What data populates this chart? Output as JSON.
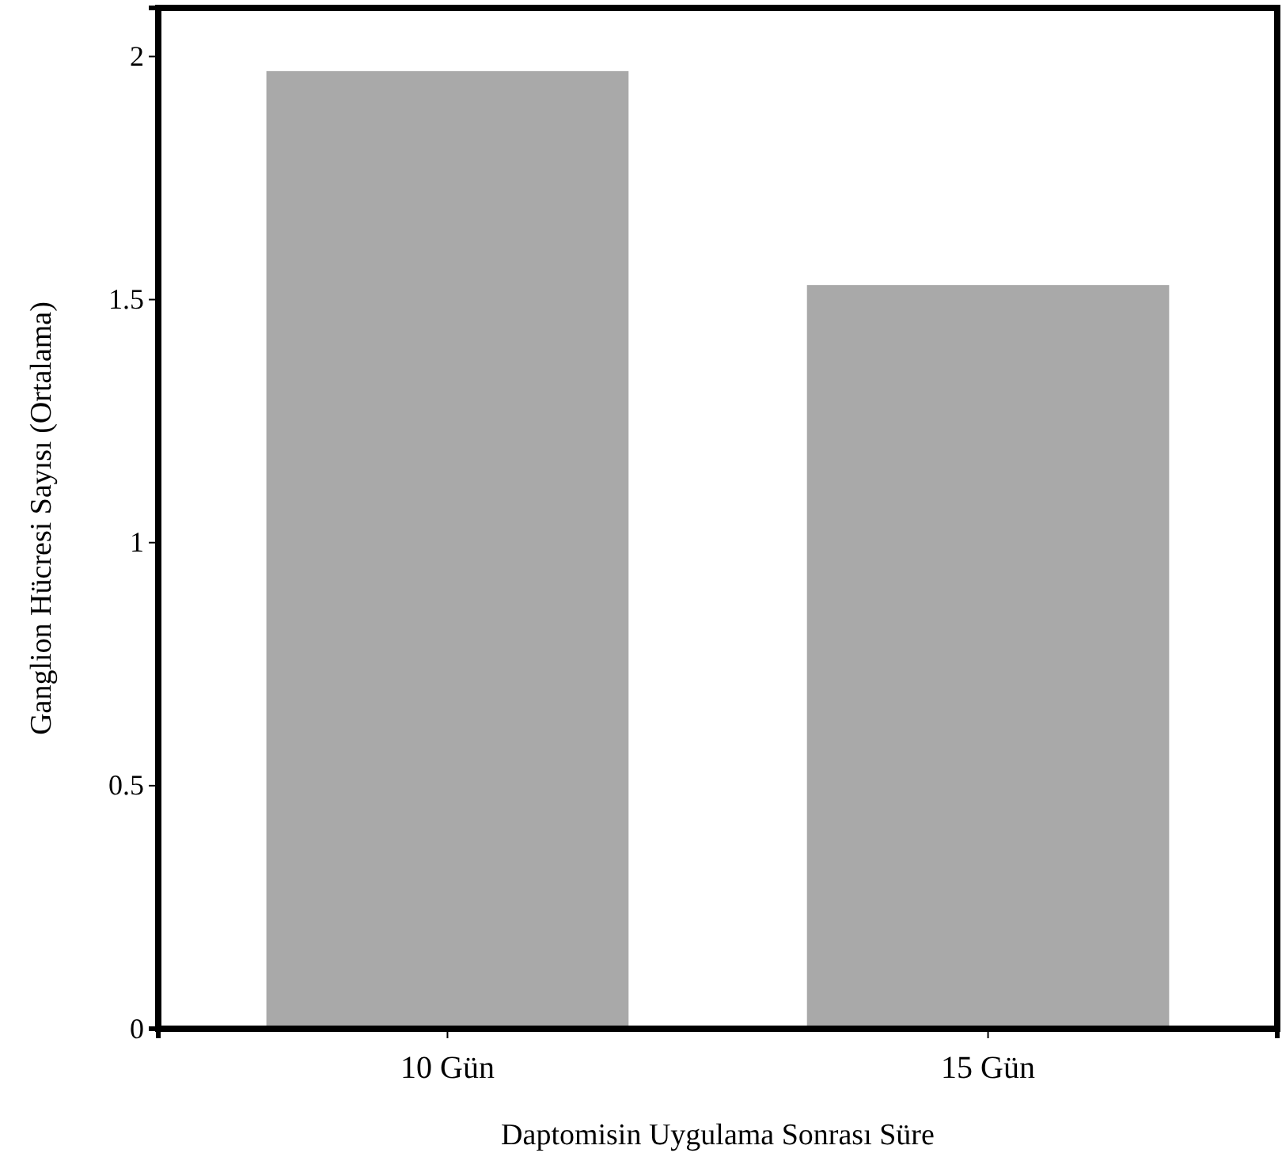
{
  "chart_data": {
    "type": "bar",
    "xlabel": "Daptomisin Uygulama Sonrası Süre",
    "ylabel": "Ganglion Hücresi Sayısı (Ortalama)",
    "categories": [
      "10 Gün",
      "15 Gün"
    ],
    "values": [
      1.97,
      1.53
    ],
    "color": "#a9a9a9",
    "ylim": [
      0,
      2.1
    ],
    "yticks": [
      0,
      0.5,
      1,
      1.5,
      2
    ]
  }
}
